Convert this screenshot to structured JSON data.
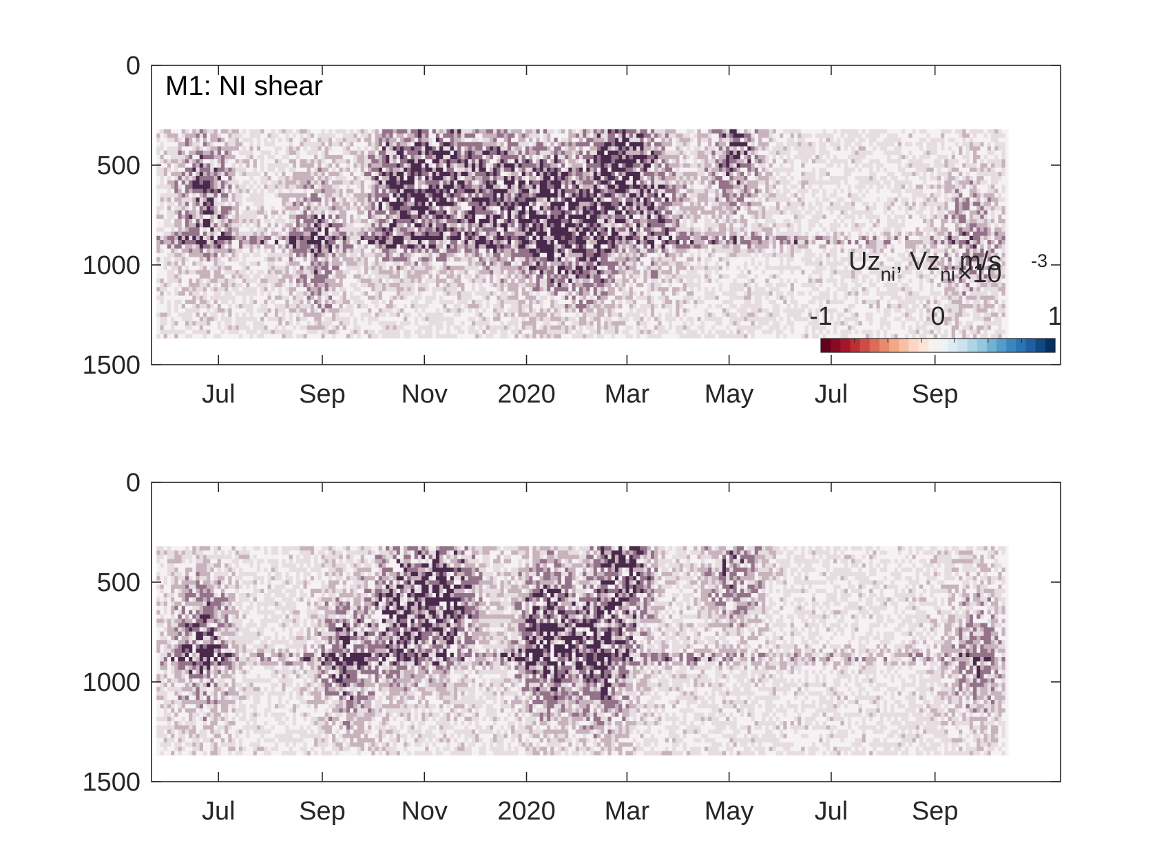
{
  "chart_data": [
    {
      "type": "heatmap",
      "title": "M1: NI shear",
      "x_ticks": [
        "Jul",
        "Sep",
        "Nov",
        "2020",
        "Mar",
        "May",
        "Jul",
        "Sep"
      ],
      "x_tick_dates": [
        "2019-07-01",
        "2019-09-01",
        "2019-11-01",
        "2020-01-01",
        "2020-03-01",
        "2020-05-01",
        "2020-07-01",
        "2020-09-01"
      ],
      "xlim": [
        "2019-05-22",
        "2020-11-15"
      ],
      "ylim": [
        0,
        1500
      ],
      "y_reversed": true,
      "y_ticks": [
        "0",
        "500",
        "1000",
        "1500"
      ],
      "y_tick_values": [
        0,
        500,
        1000,
        1500
      ],
      "data_extent": {
        "x": [
          "2019-05-25",
          "2020-10-15"
        ],
        "y": [
          320,
          1370
        ]
      },
      "grid": false,
      "colorbar": {
        "label_main_1": "Uz",
        "label_sub_1": "ni",
        "label_sep": ",",
        "label_main_2": "Vz",
        "label_sub_2": "ni",
        "unit": "m/s",
        "multiplier": "×10",
        "exponent": "-3",
        "ticks": [
          "-1",
          "0",
          "1"
        ],
        "tick_values": [
          -1,
          0,
          1
        ],
        "range": [
          -1,
          1
        ],
        "placement": "inside-bottom-right",
        "colors": [
          "#67001f",
          "#b2182b",
          "#d6604d",
          "#f4a582",
          "#fddbc7",
          "#f7f7f7",
          "#d1e5f0",
          "#92c5de",
          "#4393c3",
          "#2166ac",
          "#053061"
        ]
      },
      "features": [
        {
          "x": "2019-06-22",
          "y": 650,
          "strength": 0.6
        },
        {
          "x": "2019-08-28",
          "y": 860,
          "strength": 0.5
        },
        {
          "x": "2019-10-15",
          "y": 620,
          "strength": 0.8
        },
        {
          "x": "2019-11-12",
          "y": 560,
          "strength": 0.9
        },
        {
          "x": "2019-12-12",
          "y": 650,
          "strength": 0.7
        },
        {
          "x": "2020-01-12",
          "y": 760,
          "strength": 1.0
        },
        {
          "x": "2020-02-08",
          "y": 820,
          "strength": 0.8
        },
        {
          "x": "2020-02-26",
          "y": 380,
          "strength": 0.8
        },
        {
          "x": "2020-03-18",
          "y": 700,
          "strength": 0.5
        },
        {
          "x": "2020-05-03",
          "y": 380,
          "strength": 0.6
        },
        {
          "x": "2020-09-20",
          "y": 860,
          "strength": 0.4
        }
      ],
      "band_depth": 870
    },
    {
      "type": "heatmap",
      "x_ticks": [
        "Jul",
        "Sep",
        "Nov",
        "2020",
        "Mar",
        "May",
        "Jul",
        "Sep"
      ],
      "x_tick_dates": [
        "2019-07-01",
        "2019-09-01",
        "2019-11-01",
        "2020-01-01",
        "2020-03-01",
        "2020-05-01",
        "2020-07-01",
        "2020-09-01"
      ],
      "xlim": [
        "2019-05-22",
        "2020-11-15"
      ],
      "ylim": [
        0,
        1500
      ],
      "y_reversed": true,
      "y_ticks": [
        "0",
        "500",
        "1000",
        "1500"
      ],
      "y_tick_values": [
        0,
        500,
        1000,
        1500
      ],
      "data_extent": {
        "x": [
          "2019-05-25",
          "2020-10-15"
        ],
        "y": [
          320,
          1370
        ]
      },
      "grid": false,
      "features": [
        {
          "x": "2019-06-20",
          "y": 800,
          "strength": 0.6
        },
        {
          "x": "2019-09-15",
          "y": 860,
          "strength": 0.6
        },
        {
          "x": "2019-10-18",
          "y": 620,
          "strength": 0.8
        },
        {
          "x": "2019-11-14",
          "y": 560,
          "strength": 0.8
        },
        {
          "x": "2020-01-12",
          "y": 760,
          "strength": 1.0
        },
        {
          "x": "2020-02-15",
          "y": 860,
          "strength": 0.7
        },
        {
          "x": "2020-02-28",
          "y": 380,
          "strength": 0.9
        },
        {
          "x": "2020-05-03",
          "y": 380,
          "strength": 0.5
        },
        {
          "x": "2020-09-25",
          "y": 870,
          "strength": 0.4
        }
      ],
      "band_depth": 870
    }
  ]
}
